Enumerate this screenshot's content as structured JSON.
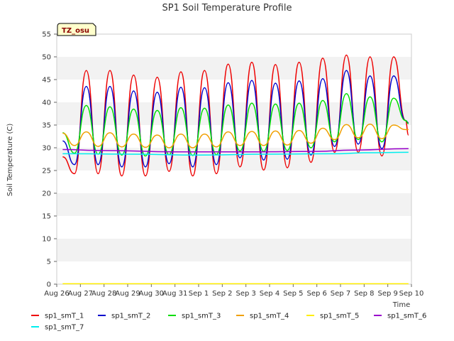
{
  "chart_data": {
    "type": "line",
    "title": "SP1 Soil Temperature Profile",
    "xlabel": "Time",
    "ylabel": "Soil Temperature (C)",
    "ylim": [
      0,
      55
    ],
    "yticks": [
      0,
      5,
      10,
      15,
      20,
      25,
      30,
      35,
      40,
      45,
      50,
      55
    ],
    "xlim": [
      "2024-08-26",
      "2024-09-10"
    ],
    "xticks": [
      "Aug 26",
      "Aug 27",
      "Aug 28",
      "Aug 29",
      "Aug 30",
      "Aug 31",
      "Sep 1",
      "Sep 2",
      "Sep 3",
      "Sep 4",
      "Sep 5",
      "Sep 6",
      "Sep 7",
      "Sep 8",
      "Sep 9",
      "Sep 10"
    ],
    "grid": "horizontal bands",
    "legend_position": "bottom",
    "annotation": "TZ_osu",
    "series": [
      {
        "name": "sp1_smT_1",
        "color": "#ee0000",
        "x": [
          "2024-08-26 06:00",
          "2024-08-26 18:00",
          "2024-08-27 06:00",
          "2024-08-27 18:00",
          "2024-08-28 06:00",
          "2024-08-28 18:00",
          "2024-08-29 06:00",
          "2024-08-29 18:00",
          "2024-08-30 06:00",
          "2024-08-30 18:00",
          "2024-08-31 06:00",
          "2024-08-31 18:00",
          "2024-09-01 06:00",
          "2024-09-01 18:00",
          "2024-09-02 06:00",
          "2024-09-02 18:00",
          "2024-09-03 06:00",
          "2024-09-03 18:00",
          "2024-09-04 06:00",
          "2024-09-04 18:00",
          "2024-09-05 06:00",
          "2024-09-05 18:00",
          "2024-09-06 06:00",
          "2024-09-06 18:00",
          "2024-09-07 06:00",
          "2024-09-07 18:00",
          "2024-09-08 06:00",
          "2024-09-08 18:00",
          "2024-09-09 06:00",
          "2024-09-09 18:00",
          "2024-09-09 21:00"
        ],
        "y": [
          28.0,
          24.3,
          47.0,
          24.3,
          47.0,
          23.8,
          46.0,
          23.8,
          45.5,
          24.8,
          46.7,
          23.8,
          47.0,
          24.3,
          48.4,
          25.8,
          48.8,
          25.1,
          48.3,
          25.6,
          48.8,
          26.8,
          49.7,
          29.0,
          50.4,
          29.0,
          50.0,
          28.2,
          50.0,
          36.0,
          32.8
        ]
      },
      {
        "name": "sp1_smT_2",
        "color": "#0000cc",
        "x": [
          "2024-08-26 06:00",
          "2024-08-26 18:00",
          "2024-08-27 06:00",
          "2024-08-27 18:00",
          "2024-08-28 06:00",
          "2024-08-28 18:00",
          "2024-08-29 06:00",
          "2024-08-29 18:00",
          "2024-08-30 06:00",
          "2024-08-30 18:00",
          "2024-08-31 06:00",
          "2024-08-31 18:00",
          "2024-09-01 06:00",
          "2024-09-01 18:00",
          "2024-09-02 06:00",
          "2024-09-02 18:00",
          "2024-09-03 06:00",
          "2024-09-03 18:00",
          "2024-09-04 06:00",
          "2024-09-04 18:00",
          "2024-09-05 06:00",
          "2024-09-05 18:00",
          "2024-09-06 06:00",
          "2024-09-06 18:00",
          "2024-09-07 06:00",
          "2024-09-07 18:00",
          "2024-09-08 06:00",
          "2024-09-08 18:00",
          "2024-09-09 06:00",
          "2024-09-09 18:00",
          "2024-09-09 21:00"
        ],
        "y": [
          31.5,
          26.3,
          43.5,
          26.3,
          43.5,
          25.8,
          42.5,
          25.8,
          42.2,
          26.5,
          43.3,
          25.8,
          43.2,
          26.3,
          44.3,
          27.8,
          44.8,
          27.3,
          44.2,
          27.5,
          44.7,
          28.4,
          45.2,
          30.3,
          47.0,
          30.8,
          45.8,
          29.8,
          45.8,
          36.0,
          35.5
        ]
      },
      {
        "name": "sp1_smT_3",
        "color": "#00dd00",
        "x": [
          "2024-08-26 06:00",
          "2024-08-26 18:00",
          "2024-08-27 06:00",
          "2024-08-27 18:00",
          "2024-08-28 06:00",
          "2024-08-28 18:00",
          "2024-08-29 06:00",
          "2024-08-29 18:00",
          "2024-08-30 06:00",
          "2024-08-30 18:00",
          "2024-08-31 06:00",
          "2024-08-31 18:00",
          "2024-09-01 06:00",
          "2024-09-01 18:00",
          "2024-09-02 06:00",
          "2024-09-02 18:00",
          "2024-09-03 06:00",
          "2024-09-03 18:00",
          "2024-09-04 06:00",
          "2024-09-04 18:00",
          "2024-09-05 06:00",
          "2024-09-05 18:00",
          "2024-09-06 06:00",
          "2024-09-06 18:00",
          "2024-09-07 06:00",
          "2024-09-07 18:00",
          "2024-09-08 06:00",
          "2024-09-08 18:00",
          "2024-09-09 06:00",
          "2024-09-09 18:00",
          "2024-09-09 21:00"
        ],
        "y": [
          33.3,
          28.8,
          39.3,
          28.6,
          39.0,
          28.4,
          38.5,
          28.2,
          38.2,
          28.5,
          38.8,
          28.3,
          38.7,
          28.5,
          39.4,
          29.3,
          39.8,
          29.2,
          39.6,
          29.4,
          39.8,
          30.0,
          40.4,
          31.3,
          41.9,
          31.8,
          41.2,
          31.3,
          40.9,
          36.0,
          35.3
        ]
      },
      {
        "name": "sp1_smT_4",
        "color": "#f0a000",
        "x": [
          "2024-08-26 06:00",
          "2024-08-26 18:00",
          "2024-08-27 06:00",
          "2024-08-27 18:00",
          "2024-08-28 06:00",
          "2024-08-28 18:00",
          "2024-08-29 06:00",
          "2024-08-29 18:00",
          "2024-08-30 06:00",
          "2024-08-30 18:00",
          "2024-08-31 06:00",
          "2024-08-31 18:00",
          "2024-09-01 06:00",
          "2024-09-01 18:00",
          "2024-09-02 06:00",
          "2024-09-02 18:00",
          "2024-09-03 06:00",
          "2024-09-03 18:00",
          "2024-09-04 06:00",
          "2024-09-04 18:00",
          "2024-09-05 06:00",
          "2024-09-05 18:00",
          "2024-09-06 06:00",
          "2024-09-06 18:00",
          "2024-09-07 06:00",
          "2024-09-07 18:00",
          "2024-09-08 06:00",
          "2024-09-08 18:00",
          "2024-09-09 06:00",
          "2024-09-09 18:00",
          "2024-09-09 21:00"
        ],
        "y": [
          33.2,
          30.5,
          33.5,
          30.3,
          33.3,
          30.2,
          33.0,
          30.1,
          32.8,
          30.0,
          33.0,
          30.0,
          33.0,
          30.2,
          33.5,
          30.5,
          33.6,
          30.5,
          33.7,
          30.6,
          33.8,
          31.0,
          34.3,
          31.8,
          35.1,
          32.2,
          35.2,
          32.0,
          35.0,
          34.0,
          34.0
        ]
      },
      {
        "name": "sp1_smT_5",
        "color": "#ffee00",
        "x": [
          "2024-08-26 06:00",
          "2024-09-09 21:00"
        ],
        "y": [
          0.1,
          0.1
        ]
      },
      {
        "name": "sp1_smT_6",
        "color": "#9900cc",
        "x": [
          "2024-08-26 06:00",
          "2024-08-28 00:00",
          "2024-08-31 00:00",
          "2024-09-03 00:00",
          "2024-09-06 00:00",
          "2024-09-07 12:00",
          "2024-09-09 21:00"
        ],
        "y": [
          29.6,
          29.4,
          29.1,
          29.1,
          29.2,
          29.5,
          29.8
        ]
      },
      {
        "name": "sp1_smT_7",
        "color": "#00eeee",
        "x": [
          "2024-08-26 06:00",
          "2024-08-29 00:00",
          "2024-09-01 00:00",
          "2024-09-04 00:00",
          "2024-09-07 00:00",
          "2024-09-08 00:00",
          "2024-09-09 21:00"
        ],
        "y": [
          28.7,
          28.6,
          28.4,
          28.6,
          28.7,
          28.9,
          29.0
        ]
      }
    ]
  }
}
